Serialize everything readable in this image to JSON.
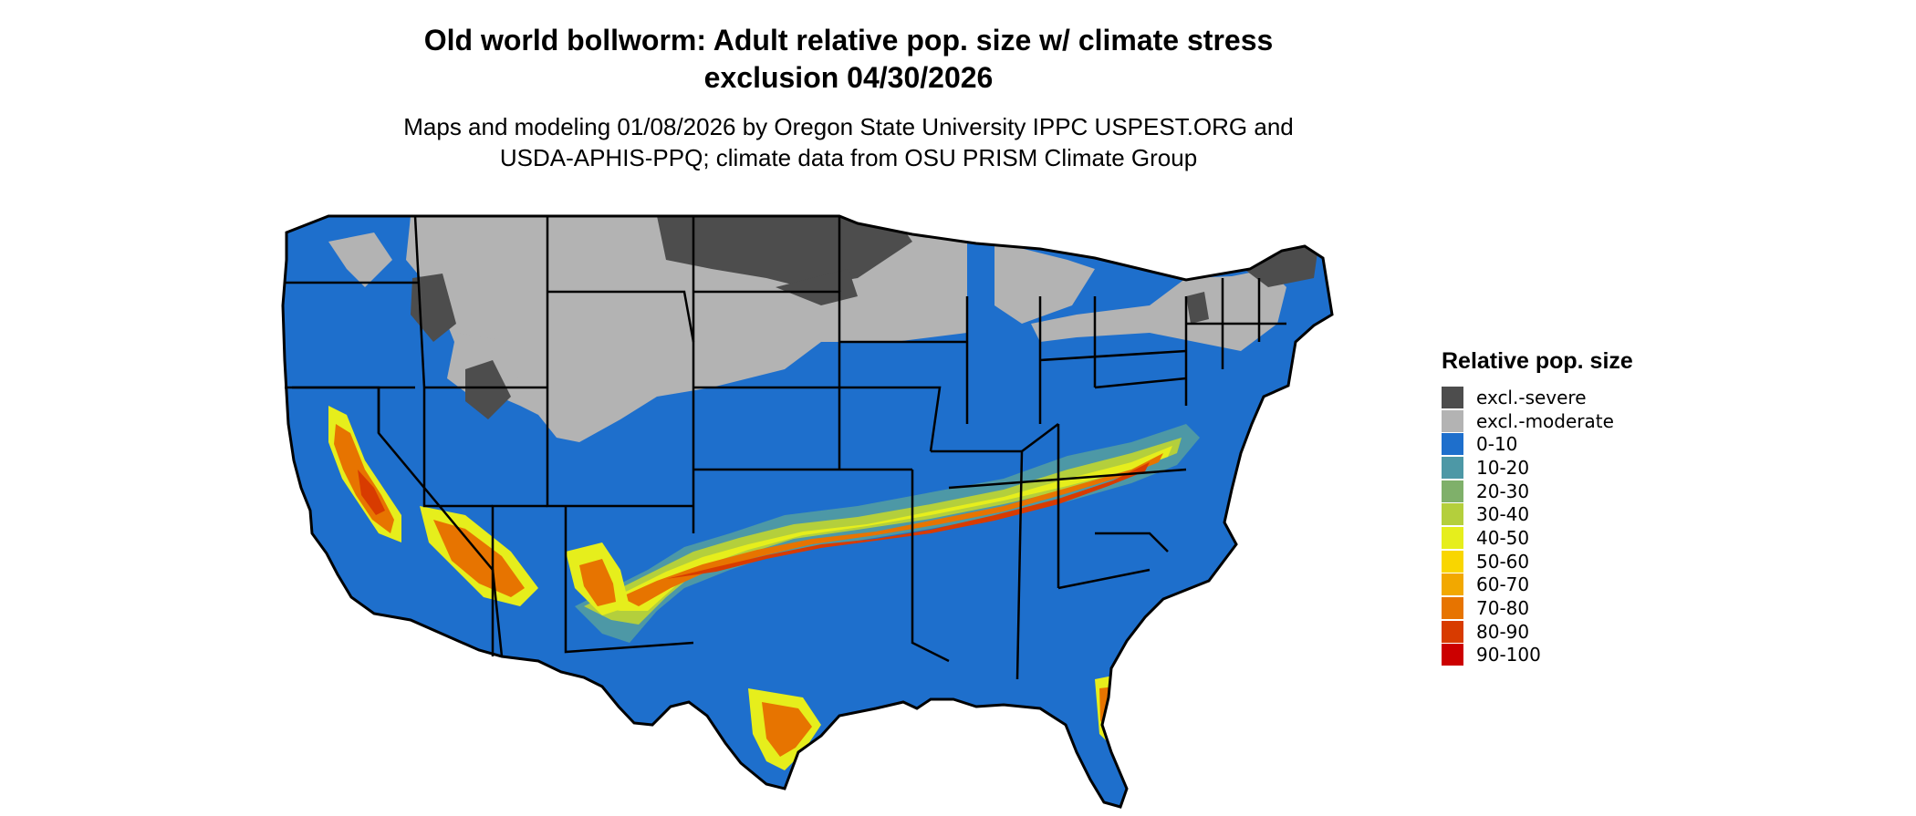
{
  "title": {
    "line1": "Old world bollworm: Adult relative pop. size w/ climate stress",
    "line2": "exclusion 04/30/2026"
  },
  "subtitle": {
    "line1": "Maps and modeling 01/08/2026 by Oregon State University IPPC USPEST.ORG and",
    "line2": "USDA-APHIS-PPQ; climate data from OSU PRISM Climate Group"
  },
  "legend": {
    "title": "Relative pop. size",
    "items": [
      {
        "label": "excl.-severe",
        "color": "#4d4d4d"
      },
      {
        "label": "excl.-moderate",
        "color": "#b3b3b3"
      },
      {
        "label": "0-10",
        "color": "#1e6fcc"
      },
      {
        "label": "10-20",
        "color": "#4d98a6"
      },
      {
        "label": "20-30",
        "color": "#7fb06a"
      },
      {
        "label": "30-40",
        "color": "#b4cf3c"
      },
      {
        "label": "40-50",
        "color": "#e6ee1c"
      },
      {
        "label": "50-60",
        "color": "#f9d600"
      },
      {
        "label": "60-70",
        "color": "#f2a800"
      },
      {
        "label": "70-80",
        "color": "#e77400"
      },
      {
        "label": "80-90",
        "color": "#d83b00"
      },
      {
        "label": "90-100",
        "color": "#cc0000"
      }
    ]
  },
  "map": {
    "region": "Contiguous United States",
    "border_color": "#000000"
  }
}
